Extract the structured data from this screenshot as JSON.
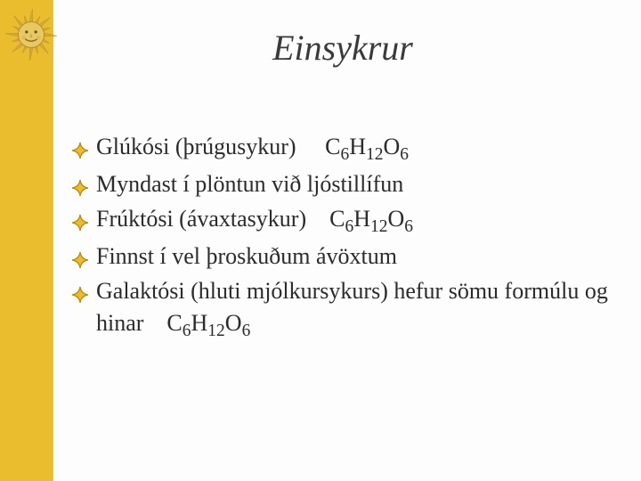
{
  "colors": {
    "background": "#fdfdfd",
    "leftbar": "#e9bd2e",
    "title": "#3a3a3a",
    "body": "#2b2b2b",
    "bullet_outer": "#b8860b",
    "bullet_inner": "#e9bd2e",
    "sun_face": "#e8c863",
    "sun_ray": "#d4a938",
    "sun_shadow": "#b0882a"
  },
  "typography": {
    "title_size": 40,
    "body_size": 26
  },
  "title": "Einsykrur",
  "bullets": [
    {
      "text": "Glúkósi (þrúgusykur)     C",
      "formula_sub": "6",
      "f2": "H",
      "f2s": "12",
      "f3": "O",
      "f3s": "6",
      "has_formula": true
    },
    {
      "text": "Myndast í plöntun við ljóstillífun",
      "has_formula": false
    },
    {
      "text": "Frúktósi (ávaxtasykur)    C",
      "formula_sub": "6",
      "f2": "H",
      "f2s": "12",
      "f3": "O",
      "f3s": "6",
      "has_formula": true
    },
    {
      "text": "Finnst í vel þroskuðum ávöxtum",
      "has_formula": false
    },
    {
      "text": "Galaktósi (hluti mjólkursykurs) hefur sömu formúlu og hinar    C",
      "formula_sub": "6",
      "f2": "H",
      "f2s": "12",
      "f3": "O",
      "f3s": "6",
      "has_formula": true
    }
  ]
}
